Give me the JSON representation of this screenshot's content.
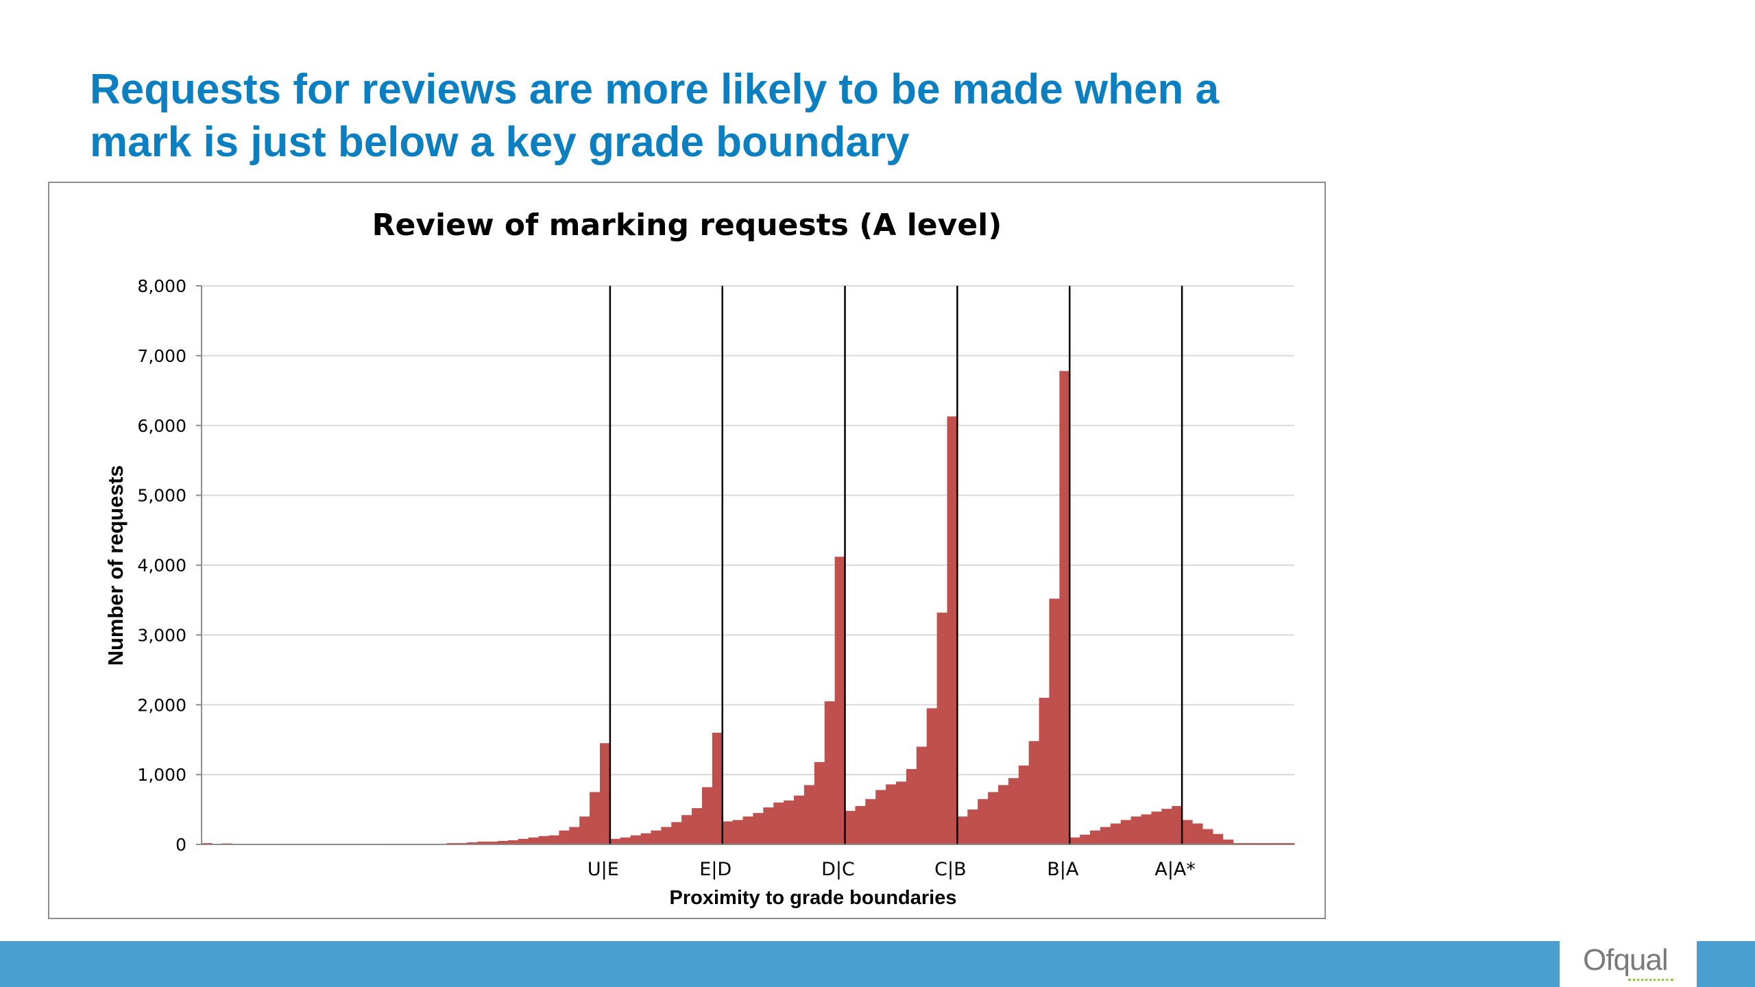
{
  "slide": {
    "title": "Requests for reviews are more likely to be made when a mark is just below a key grade boundary",
    "logo_text": "Ofqual"
  },
  "colors": {
    "title": "#0b7fc0",
    "bar": "#c0504d",
    "footer": "#4b9fd0",
    "logo_accent": "#8cc63f"
  },
  "chart_data": {
    "type": "bar",
    "title": "Review of marking requests (A level)",
    "xlabel": "Proximity to grade boundaries",
    "ylabel": "Number of requests",
    "ylim": [
      0,
      8000
    ],
    "yticks": [
      0,
      1000,
      2000,
      3000,
      4000,
      5000,
      6000,
      7000,
      8000
    ],
    "ytick_labels": [
      "0",
      "1,000",
      "2,000",
      "3,000",
      "4,000",
      "5,000",
      "6,000",
      "7,000",
      "8,000"
    ],
    "grid": true,
    "values": [
      20,
      0,
      15,
      0,
      0,
      0,
      0,
      10,
      10,
      10,
      10,
      10,
      10,
      10,
      10,
      10,
      0,
      10,
      10,
      10,
      10,
      10,
      10,
      10,
      20,
      20,
      30,
      40,
      40,
      50,
      60,
      80,
      100,
      120,
      130,
      200,
      250,
      400,
      750,
      1450,
      80,
      100,
      130,
      160,
      200,
      250,
      320,
      420,
      520,
      820,
      1600,
      330,
      350,
      400,
      450,
      530,
      600,
      630,
      700,
      850,
      1180,
      2050,
      4120,
      480,
      550,
      650,
      780,
      860,
      900,
      1080,
      1400,
      1950,
      3320,
      6130,
      400,
      500,
      650,
      750,
      850,
      950,
      1130,
      1480,
      2100,
      3520,
      6780,
      100,
      140,
      200,
      250,
      300,
      350,
      400,
      430,
      470,
      510,
      550,
      350,
      300,
      220,
      150,
      70,
      20,
      20,
      20,
      20,
      20,
      20
    ],
    "boundaries": [
      {
        "label": "U|E",
        "after_index": 39
      },
      {
        "label": "E|D",
        "after_index": 50
      },
      {
        "label": "D|C",
        "after_index": 62
      },
      {
        "label": "C|B",
        "after_index": 73
      },
      {
        "label": "B|A",
        "after_index": 84
      },
      {
        "label": "A|A*",
        "after_index": 95
      }
    ]
  }
}
